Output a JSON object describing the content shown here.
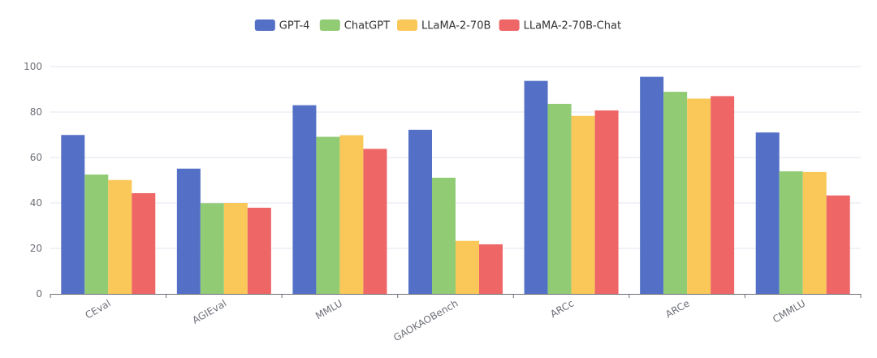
{
  "chart_data": {
    "type": "bar",
    "categories": [
      "CEval",
      "AGIEval",
      "MMLU",
      "GAOKAOBench",
      "ARCc",
      "ARCe",
      "CMMLU"
    ],
    "series": [
      {
        "name": "GPT-4",
        "color": "#5470c6",
        "values": [
          69.9,
          55.1,
          83.0,
          72.2,
          93.7,
          95.5,
          71.0
        ]
      },
      {
        "name": "ChatGPT",
        "color": "#91cc75",
        "values": [
          52.5,
          39.9,
          69.1,
          51.1,
          83.6,
          88.9,
          53.9
        ]
      },
      {
        "name": "LLaMA-2-70B",
        "color": "#fac858",
        "values": [
          50.1,
          40.0,
          69.8,
          23.3,
          78.3,
          85.9,
          53.6
        ]
      },
      {
        "name": "LLaMA-2-70B-Chat",
        "color": "#ee6666",
        "values": [
          44.3,
          37.9,
          63.8,
          21.8,
          80.7,
          87.0,
          43.3
        ]
      }
    ],
    "yticks": [
      "0",
      "20",
      "40",
      "60",
      "80",
      "100"
    ],
    "ylim": [
      0,
      100
    ],
    "title": "",
    "xlabel": "",
    "ylabel": "",
    "grid": true,
    "legend_position": "top-center"
  }
}
